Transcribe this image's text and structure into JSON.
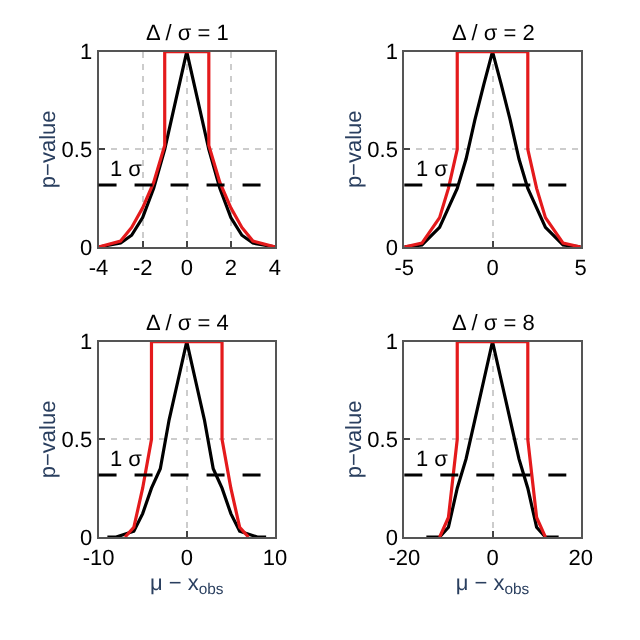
{
  "chart_data": [
    {
      "type": "line",
      "title": "Δ / σ = 1",
      "ylabel": "p−value",
      "xlim": [
        -4,
        4
      ],
      "xticks": [
        -4,
        -2,
        0,
        2,
        4
      ],
      "ylim": [
        0,
        1
      ],
      "yticks": [
        0,
        0.5,
        1
      ],
      "grid": true,
      "line_style": "solid",
      "series": [
        {
          "color": "#000000",
          "x": [
            -4,
            -3,
            -2.5,
            -2,
            -1.5,
            -1,
            -0.5,
            0,
            0.5,
            1,
            1.5,
            2,
            2.5,
            3,
            4
          ],
          "values": [
            0,
            0.02,
            0.06,
            0.15,
            0.3,
            0.5,
            0.75,
            1,
            0.75,
            0.5,
            0.3,
            0.15,
            0.06,
            0.02,
            0
          ]
        },
        {
          "color": "#e41a1c",
          "x": [
            -4,
            -3,
            -2.5,
            -2,
            -1.5,
            -1,
            -1,
            1,
            1,
            1.5,
            2,
            2.5,
            3,
            4
          ],
          "values": [
            0,
            0.03,
            0.1,
            0.2,
            0.33,
            0.52,
            1,
            1,
            0.52,
            0.33,
            0.2,
            0.1,
            0.03,
            0
          ]
        }
      ],
      "ref_lines": [
        {
          "axis": "y",
          "value": 0.317,
          "label": "1 σ",
          "line_style": "dashed",
          "color": "#000000"
        }
      ]
    },
    {
      "type": "line",
      "title": "Δ / σ = 2",
      "ylabel": "p−value",
      "xlim": [
        -5,
        5
      ],
      "xticks": [
        -5,
        0,
        5
      ],
      "ylim": [
        0,
        1
      ],
      "yticks": [
        0,
        0.5,
        1
      ],
      "grid": true,
      "line_style": "solid",
      "series": [
        {
          "color": "#000000",
          "x": [
            -5,
            -4,
            -3,
            -2.5,
            -2,
            -1.5,
            -1,
            -0.5,
            0,
            0.5,
            1,
            1.5,
            2,
            2.5,
            3,
            4,
            5
          ],
          "values": [
            0,
            0.01,
            0.1,
            0.2,
            0.3,
            0.45,
            0.65,
            0.83,
            1,
            0.83,
            0.65,
            0.45,
            0.3,
            0.2,
            0.1,
            0.01,
            0
          ]
        },
        {
          "color": "#e41a1c",
          "x": [
            -5,
            -4,
            -3,
            -2.5,
            -2,
            -2,
            2,
            2,
            2.5,
            3,
            4,
            5
          ],
          "values": [
            0,
            0.02,
            0.15,
            0.3,
            0.5,
            1,
            1,
            0.5,
            0.3,
            0.15,
            0.02,
            0
          ]
        }
      ],
      "ref_lines": [
        {
          "axis": "y",
          "value": 0.317,
          "label": "1 σ",
          "line_style": "dashed",
          "color": "#000000"
        }
      ]
    },
    {
      "type": "line",
      "title": "Δ / σ = 4",
      "xlabel": "μ − x$_{obs}$",
      "ylabel": "p−value",
      "xlim": [
        -10,
        10
      ],
      "xticks": [
        -10,
        0,
        10
      ],
      "ylim": [
        0,
        1
      ],
      "yticks": [
        0,
        0.5,
        1
      ],
      "grid": true,
      "line_style": "solid",
      "series": [
        {
          "color": "#000000",
          "x": [
            -9,
            -8,
            -6,
            -5,
            -4,
            -3,
            -2,
            -1,
            0,
            1,
            2,
            3,
            4,
            5,
            6,
            8,
            9
          ],
          "values": [
            0,
            0,
            0.03,
            0.12,
            0.25,
            0.35,
            0.6,
            0.8,
            1,
            0.8,
            0.6,
            0.35,
            0.25,
            0.12,
            0.03,
            0,
            0
          ]
        },
        {
          "color": "#e41a1c",
          "x": [
            -7,
            -6,
            -5,
            -4,
            -4,
            4,
            4,
            5,
            6,
            7
          ],
          "values": [
            0,
            0.05,
            0.25,
            0.5,
            1,
            1,
            0.5,
            0.25,
            0.05,
            0
          ]
        }
      ],
      "ref_lines": [
        {
          "axis": "y",
          "value": 0.317,
          "label": "1 σ",
          "line_style": "dashed",
          "color": "#000000"
        }
      ]
    },
    {
      "type": "line",
      "title": "Δ / σ = 8",
      "xlabel": "μ − x$_{obs}$",
      "ylabel": "p−value",
      "xlim": [
        -20,
        20
      ],
      "xticks": [
        -20,
        0,
        20
      ],
      "ylim": [
        0,
        1
      ],
      "yticks": [
        0,
        0.5,
        1
      ],
      "grid": true,
      "line_style": "solid",
      "series": [
        {
          "color": "#000000",
          "x": [
            -15,
            -12,
            -10,
            -8,
            -6,
            -4,
            -2,
            0,
            2,
            4,
            6,
            8,
            10,
            12,
            15
          ],
          "values": [
            0,
            0,
            0.05,
            0.25,
            0.4,
            0.6,
            0.8,
            1,
            0.8,
            0.6,
            0.4,
            0.25,
            0.05,
            0,
            0
          ]
        },
        {
          "color": "#e41a1c",
          "x": [
            -12,
            -10,
            -8,
            -8,
            8,
            8,
            10,
            12
          ],
          "values": [
            0,
            0.1,
            0.5,
            1,
            1,
            0.5,
            0.1,
            0
          ]
        }
      ],
      "ref_lines": [
        {
          "axis": "y",
          "value": 0.317,
          "label": "1 σ",
          "line_style": "dashed",
          "color": "#000000"
        }
      ]
    }
  ]
}
